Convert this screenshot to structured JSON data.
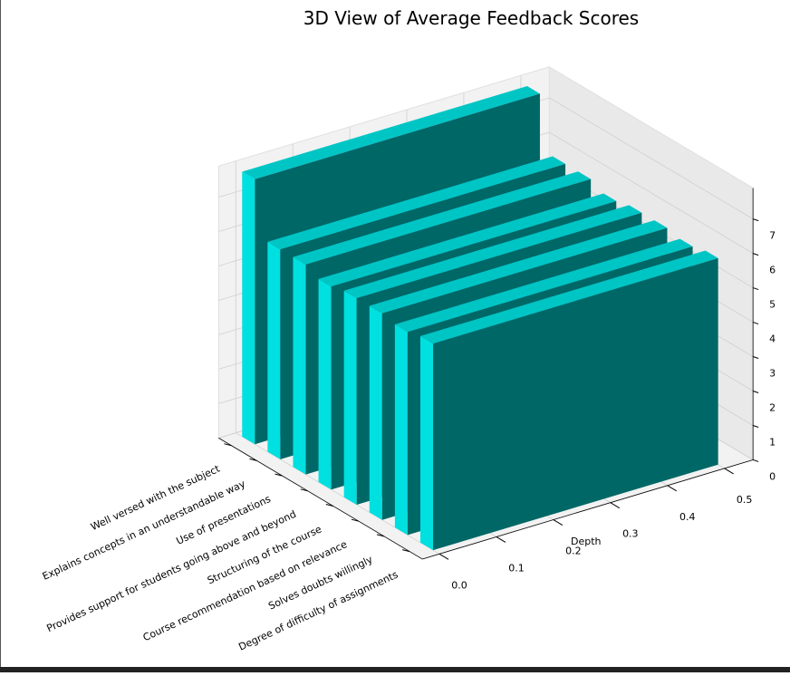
{
  "chart_data": {
    "type": "bar3d",
    "title": "3D View of Average Feedback Scores",
    "categories": [
      "Well versed with the subject",
      "Explains concepts in an understandable way",
      "Use of presentations",
      "Provides support for students going above and beyond",
      "Structuring of the course",
      "Course recommendation based on relevance",
      "Solves doubts willingly",
      "Degree of difficulty of assignments"
    ],
    "values": [
      7.7,
      6.1,
      6.1,
      5.9,
      6.0,
      6.0,
      5.9,
      6.0
    ],
    "color": "#00e0e0",
    "ylabel": "Depth",
    "ylim": [
      -0.03,
      0.55
    ],
    "yticks": [
      {
        "value": 0,
        "label": "0.0"
      },
      0.1,
      0.2,
      0.3,
      0.4,
      0.5
    ],
    "zlim": [
      0,
      7.9
    ],
    "zticks": [
      0,
      1,
      2,
      3,
      4,
      5,
      6,
      7
    ],
    "grid": true
  }
}
